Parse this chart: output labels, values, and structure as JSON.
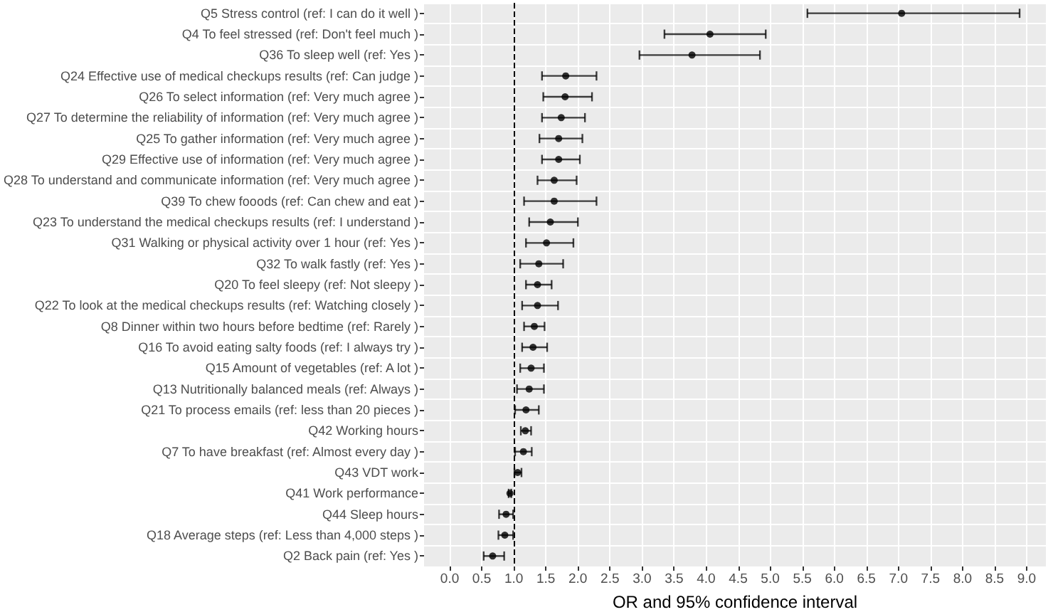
{
  "chart_data": {
    "type": "scatter",
    "xlabel": "OR and 95% confidence interval",
    "orientation": "horizontal",
    "categories": [
      "Q5 Stress control (ref: I can do it well )",
      "Q4 To feel stressed (ref: Don't feel much )",
      "Q36 To sleep well (ref: Yes )",
      "Q24 Effective use of medical checkups results (ref: Can judge )",
      "Q26 To select information (ref: Very much agree )",
      "Q27 To determine the reliability of information (ref: Very much agree )",
      "Q25 To gather information (ref: Very much agree )",
      "Q29 Effective use of information (ref: Very much agree )",
      "Q28 To understand and communicate information (ref: Very much agree )",
      "Q39 To chew fooods (ref: Can chew and eat )",
      "Q23 To understand the medical checkups results (ref: I understand )",
      "Q31 Walking or physical activity over 1 hour (ref: Yes )",
      "Q32 To walk fastly (ref: Yes )",
      "Q20 To feel sleepy (ref: Not sleepy )",
      "Q22 To look at the medical checkups results (ref: Watching closely )",
      "Q8 Dinner within two hours before bedtime (ref: Rarely )",
      "Q16 To avoid eating salty foods (ref: I always try )",
      "Q15 Amount of vegetables (ref: A lot )",
      "Q13 Nutritionally balanced meals (ref: Always )",
      "Q21 To process emails (ref: less than 20 pieces )",
      "Q42 Working hours",
      "Q7 To have breakfast (ref: Almost every day )",
      "Q43 VDT work",
      "Q41 Work performance",
      "Q44 Sleep hours",
      "Q18 Average steps (ref: Less than 4,000 steps )",
      "Q2 Back pain (ref: Yes )"
    ],
    "series": [
      {
        "color": "#000000",
        "values": [
          7.05,
          4.06,
          3.78,
          1.81,
          1.8,
          1.74,
          1.7,
          1.7,
          1.63,
          1.63,
          1.57,
          1.51,
          1.39,
          1.37,
          1.37,
          1.32,
          1.3,
          1.27,
          1.24,
          1.19,
          1.18,
          1.15,
          1.06,
          0.94,
          0.88,
          0.86,
          0.67
        ],
        "errors": [
          [
            5.58,
            8.89
          ],
          [
            3.35,
            4.93
          ],
          [
            2.96,
            4.84
          ],
          [
            1.44,
            2.29
          ],
          [
            1.46,
            2.22
          ],
          [
            1.44,
            2.11
          ],
          [
            1.4,
            2.07
          ],
          [
            1.44,
            2.03
          ],
          [
            1.37,
            1.98
          ],
          [
            1.16,
            2.29
          ],
          [
            1.24,
            2.0
          ],
          [
            1.19,
            1.93
          ],
          [
            1.1,
            1.77
          ],
          [
            1.19,
            1.59
          ],
          [
            1.13,
            1.69
          ],
          [
            1.16,
            1.48
          ],
          [
            1.13,
            1.52
          ],
          [
            1.1,
            1.47
          ],
          [
            1.05,
            1.47
          ],
          [
            1.02,
            1.39
          ],
          [
            1.11,
            1.27
          ],
          [
            1.02,
            1.28
          ],
          [
            1.01,
            1.12
          ],
          [
            0.92,
            0.96
          ],
          [
            0.77,
            0.99
          ],
          [
            0.76,
            0.99
          ],
          [
            0.53,
            0.85
          ]
        ]
      }
    ],
    "xlim": [
      -0.4,
      9.3
    ],
    "xticks": [
      {
        "value": 0,
        "label": "0.0"
      },
      {
        "value": 0.5,
        "label": "0.5"
      },
      {
        "value": 1,
        "label": "1.0"
      },
      {
        "value": 1.5,
        "label": "1.5"
      },
      {
        "value": 2,
        "label": "2.0"
      },
      {
        "value": 2.5,
        "label": "2.5"
      },
      {
        "value": 3,
        "label": "3.0"
      },
      {
        "value": 3.5,
        "label": "3.5"
      },
      {
        "value": 4,
        "label": "4.0"
      },
      {
        "value": 4.5,
        "label": "4.5"
      },
      {
        "value": 5,
        "label": "5.0"
      },
      {
        "value": 5.5,
        "label": "5.5"
      },
      {
        "value": 6,
        "label": "6.0"
      },
      {
        "value": 6.5,
        "label": "6.5"
      },
      {
        "value": 7,
        "label": "7.0"
      },
      {
        "value": 7.5,
        "label": "7.5"
      },
      {
        "value": 8,
        "label": "8.0"
      },
      {
        "value": 8.5,
        "label": "8.5"
      },
      {
        "value": 9,
        "label": "9.0"
      }
    ],
    "ref_lines": [
      {
        "axis": "x",
        "value": 1,
        "line_style": "dashed",
        "color": "#000000"
      }
    ],
    "grid": true,
    "marker": "circle"
  }
}
